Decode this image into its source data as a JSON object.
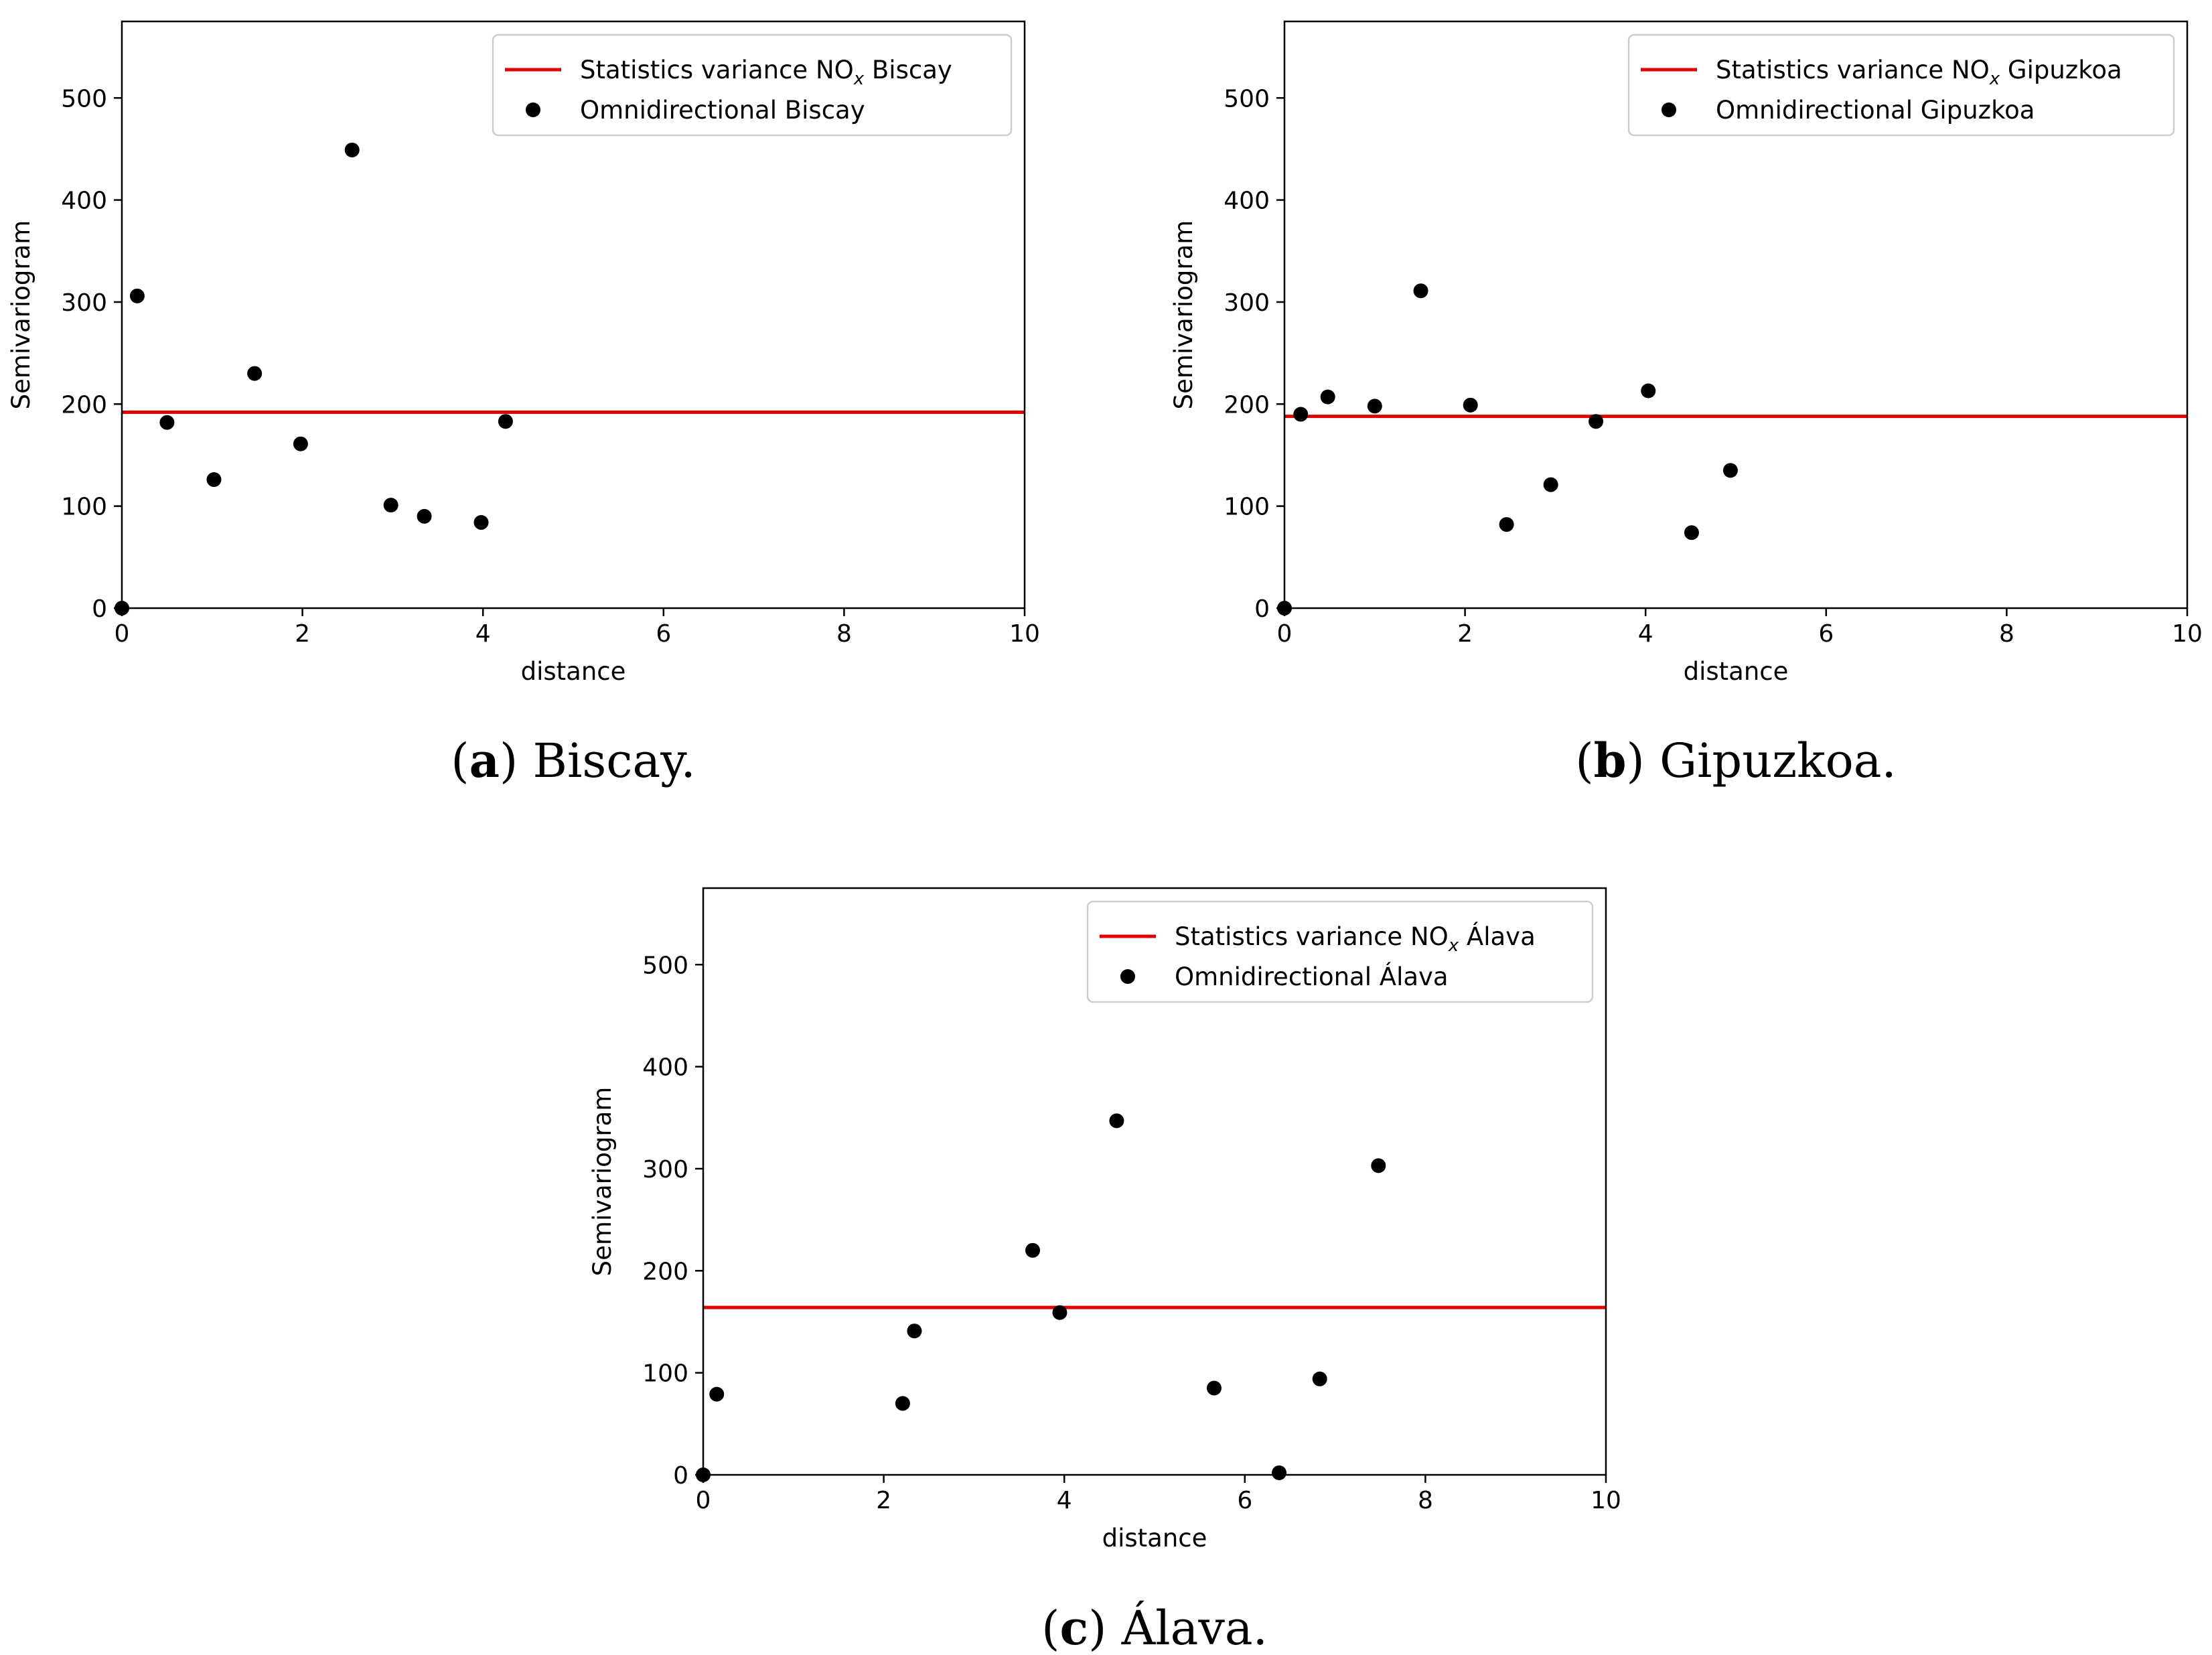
{
  "colors": {
    "variance_line": "#e00000",
    "points": "#000000",
    "axes": "#000000",
    "legend_border": "#cccccc"
  },
  "chart_data": [
    {
      "type": "scatter",
      "caption": {
        "open": "(",
        "letter": "a",
        "close": ")",
        "text": " Biscay."
      },
      "xlabel": "distance",
      "ylabel": "Semivariogram",
      "xlim": [
        0,
        10
      ],
      "ylim": [
        0,
        575
      ],
      "xticks": [
        "0",
        "2",
        "4",
        "6",
        "8",
        "10"
      ],
      "yticks": [
        "0",
        "100",
        "200",
        "300",
        "400",
        "500"
      ],
      "legend_position": "top-right",
      "variance": {
        "value": 192,
        "legend_prefix": "Statistics variance NO",
        "legend_sub": "x",
        "legend_suffix": " Biscay"
      },
      "series": [
        {
          "name": "Omnidirectional Biscay",
          "x": [
            0,
            0.17,
            0.5,
            1.02,
            1.47,
            1.98,
            2.55,
            2.98,
            3.35,
            3.98,
            4.25
          ],
          "y": [
            0,
            306,
            182,
            126,
            230,
            161,
            449,
            101,
            90,
            84,
            183
          ]
        }
      ]
    },
    {
      "type": "scatter",
      "caption": {
        "open": "(",
        "letter": "b",
        "close": ")",
        "text": " Gipuzkoa."
      },
      "xlabel": "distance",
      "ylabel": "Semivariogram",
      "xlim": [
        0,
        10
      ],
      "ylim": [
        0,
        575
      ],
      "xticks": [
        "0",
        "2",
        "4",
        "6",
        "8",
        "10"
      ],
      "yticks": [
        "0",
        "100",
        "200",
        "300",
        "400",
        "500"
      ],
      "legend_position": "top-right",
      "variance": {
        "value": 188,
        "legend_prefix": "Statistics variance NO",
        "legend_sub": "x",
        "legend_suffix": " Gipuzkoa"
      },
      "series": [
        {
          "name": "Omnidirectional Gipuzkoa",
          "x": [
            0,
            0.18,
            0.48,
            1.0,
            1.51,
            2.06,
            2.46,
            2.95,
            3.45,
            4.03,
            4.51,
            4.94
          ],
          "y": [
            0,
            190,
            207,
            198,
            311,
            199,
            82,
            121,
            183,
            213,
            74,
            135
          ]
        }
      ]
    },
    {
      "type": "scatter",
      "caption": {
        "open": "(",
        "letter": "c",
        "close": ")",
        "text": " Álava."
      },
      "xlabel": "distance",
      "ylabel": "Semivariogram",
      "xlim": [
        0,
        10
      ],
      "ylim": [
        0,
        575
      ],
      "xticks": [
        "0",
        "2",
        "4",
        "6",
        "8",
        "10"
      ],
      "yticks": [
        "0",
        "100",
        "200",
        "300",
        "400",
        "500"
      ],
      "legend_position": "top-right",
      "variance": {
        "value": 164,
        "legend_prefix": "Statistics variance NO",
        "legend_sub": "x",
        "legend_suffix": " Álava"
      },
      "series": [
        {
          "name": "Omnidirectional Álava",
          "x": [
            0,
            0.15,
            2.21,
            2.34,
            3.65,
            3.95,
            4.58,
            5.66,
            6.38,
            6.83,
            7.48
          ],
          "y": [
            0,
            79,
            70,
            141,
            220,
            159,
            347,
            85,
            2,
            94,
            303
          ]
        }
      ]
    }
  ]
}
